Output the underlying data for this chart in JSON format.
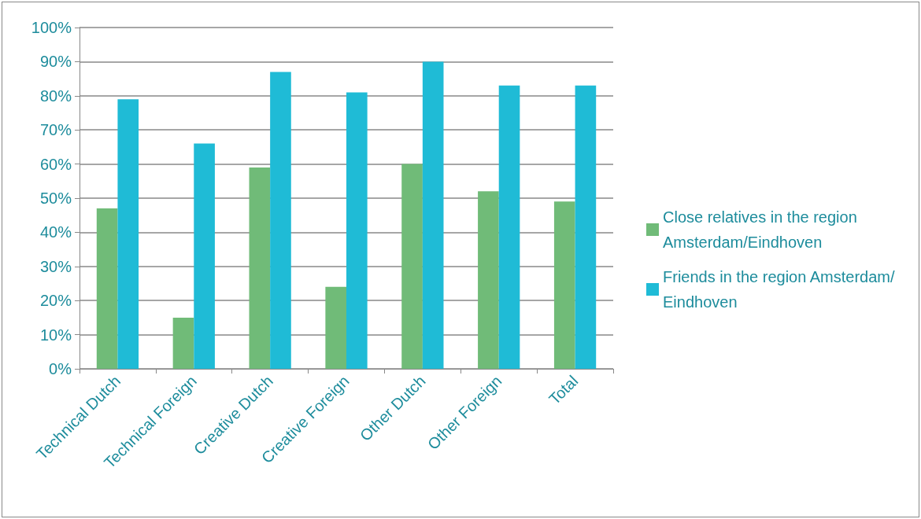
{
  "chart_data": {
    "type": "bar",
    "categories": [
      "Technical Dutch",
      "Technical Foreign",
      "Creative Dutch",
      "Creative Foreign",
      "Other Dutch",
      "Other Foreign",
      "Total"
    ],
    "series": [
      {
        "name": "Close relatives in the region Amsterdam/Eindhoven",
        "color": "#70bb78",
        "values": [
          47,
          15,
          59,
          24,
          60,
          52,
          49
        ]
      },
      {
        "name": "Friends in the region Amsterdam/Eindhoven",
        "color": "#1fbbd6",
        "values": [
          79,
          66,
          87,
          81,
          90,
          83,
          83
        ]
      }
    ],
    "ylim": [
      0,
      100
    ],
    "yticks": [
      {
        "value": 0,
        "label": "0%"
      },
      {
        "value": 10,
        "label": "10%"
      },
      {
        "value": 20,
        "label": "20%"
      },
      {
        "value": 30,
        "label": "30%"
      },
      {
        "value": 40,
        "label": "40%"
      },
      {
        "value": 50,
        "label": "50%"
      },
      {
        "value": 60,
        "label": "60%"
      },
      {
        "value": 70,
        "label": "70%"
      },
      {
        "value": 80,
        "label": "80%"
      },
      {
        "value": 90,
        "label": "90%"
      },
      {
        "value": 100,
        "label": "100%"
      }
    ],
    "grid": "y",
    "legend": "right"
  }
}
